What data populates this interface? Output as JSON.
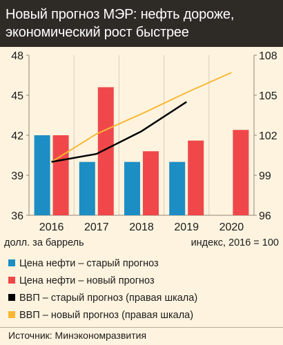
{
  "header": {
    "title": "Новый прогноз МЭР: нефть дороже, экономический рост быстрее"
  },
  "chart_data": {
    "type": "bar",
    "categories": [
      "2016",
      "2017",
      "2018",
      "2019",
      "2020"
    ],
    "left_axis": {
      "ticks": [
        "48",
        "45",
        "42",
        "39",
        "36"
      ],
      "ylim": [
        36,
        48
      ],
      "unit_label": "долл. за баррель"
    },
    "right_axis": {
      "ticks": [
        "108",
        "105",
        "102",
        "99",
        "96"
      ],
      "ylim": [
        96,
        108
      ],
      "unit_label": "индекс, 2016 = 100"
    },
    "bar_series": [
      {
        "name": "Цена нефти – старый прогноз",
        "color": "#1c8ec3",
        "values": [
          42,
          40,
          40,
          40,
          null
        ]
      },
      {
        "name": "Цена нефти – новый прогноз",
        "color": "#f0484a",
        "values": [
          42,
          45.6,
          40.8,
          41.6,
          42.4
        ]
      }
    ],
    "line_series": [
      {
        "name": "ВВП – старый прогноз (правая шкала)",
        "color": "#000000",
        "axis": "right",
        "values": [
          100,
          100.6,
          102.3,
          104.5,
          null
        ]
      },
      {
        "name": "ВВП – новый прогноз (правая шкала)",
        "color": "#f8b835",
        "axis": "right",
        "values": [
          100,
          102.1,
          103.6,
          105.2,
          106.7
        ]
      }
    ],
    "grid": "vertical"
  },
  "legend": {
    "items": [
      {
        "label": "Цена нефти – старый прогноз",
        "color": "#1c8ec3"
      },
      {
        "label": "Цена нефти – новый прогноз",
        "color": "#f0484a"
      },
      {
        "label": "ВВП – старый прогноз (правая шкала)",
        "color": "#000000"
      },
      {
        "label": "ВВП – новый прогноз (правая шкала)",
        "color": "#f8b835"
      }
    ]
  },
  "source": "Источник: Минэкономразвития"
}
